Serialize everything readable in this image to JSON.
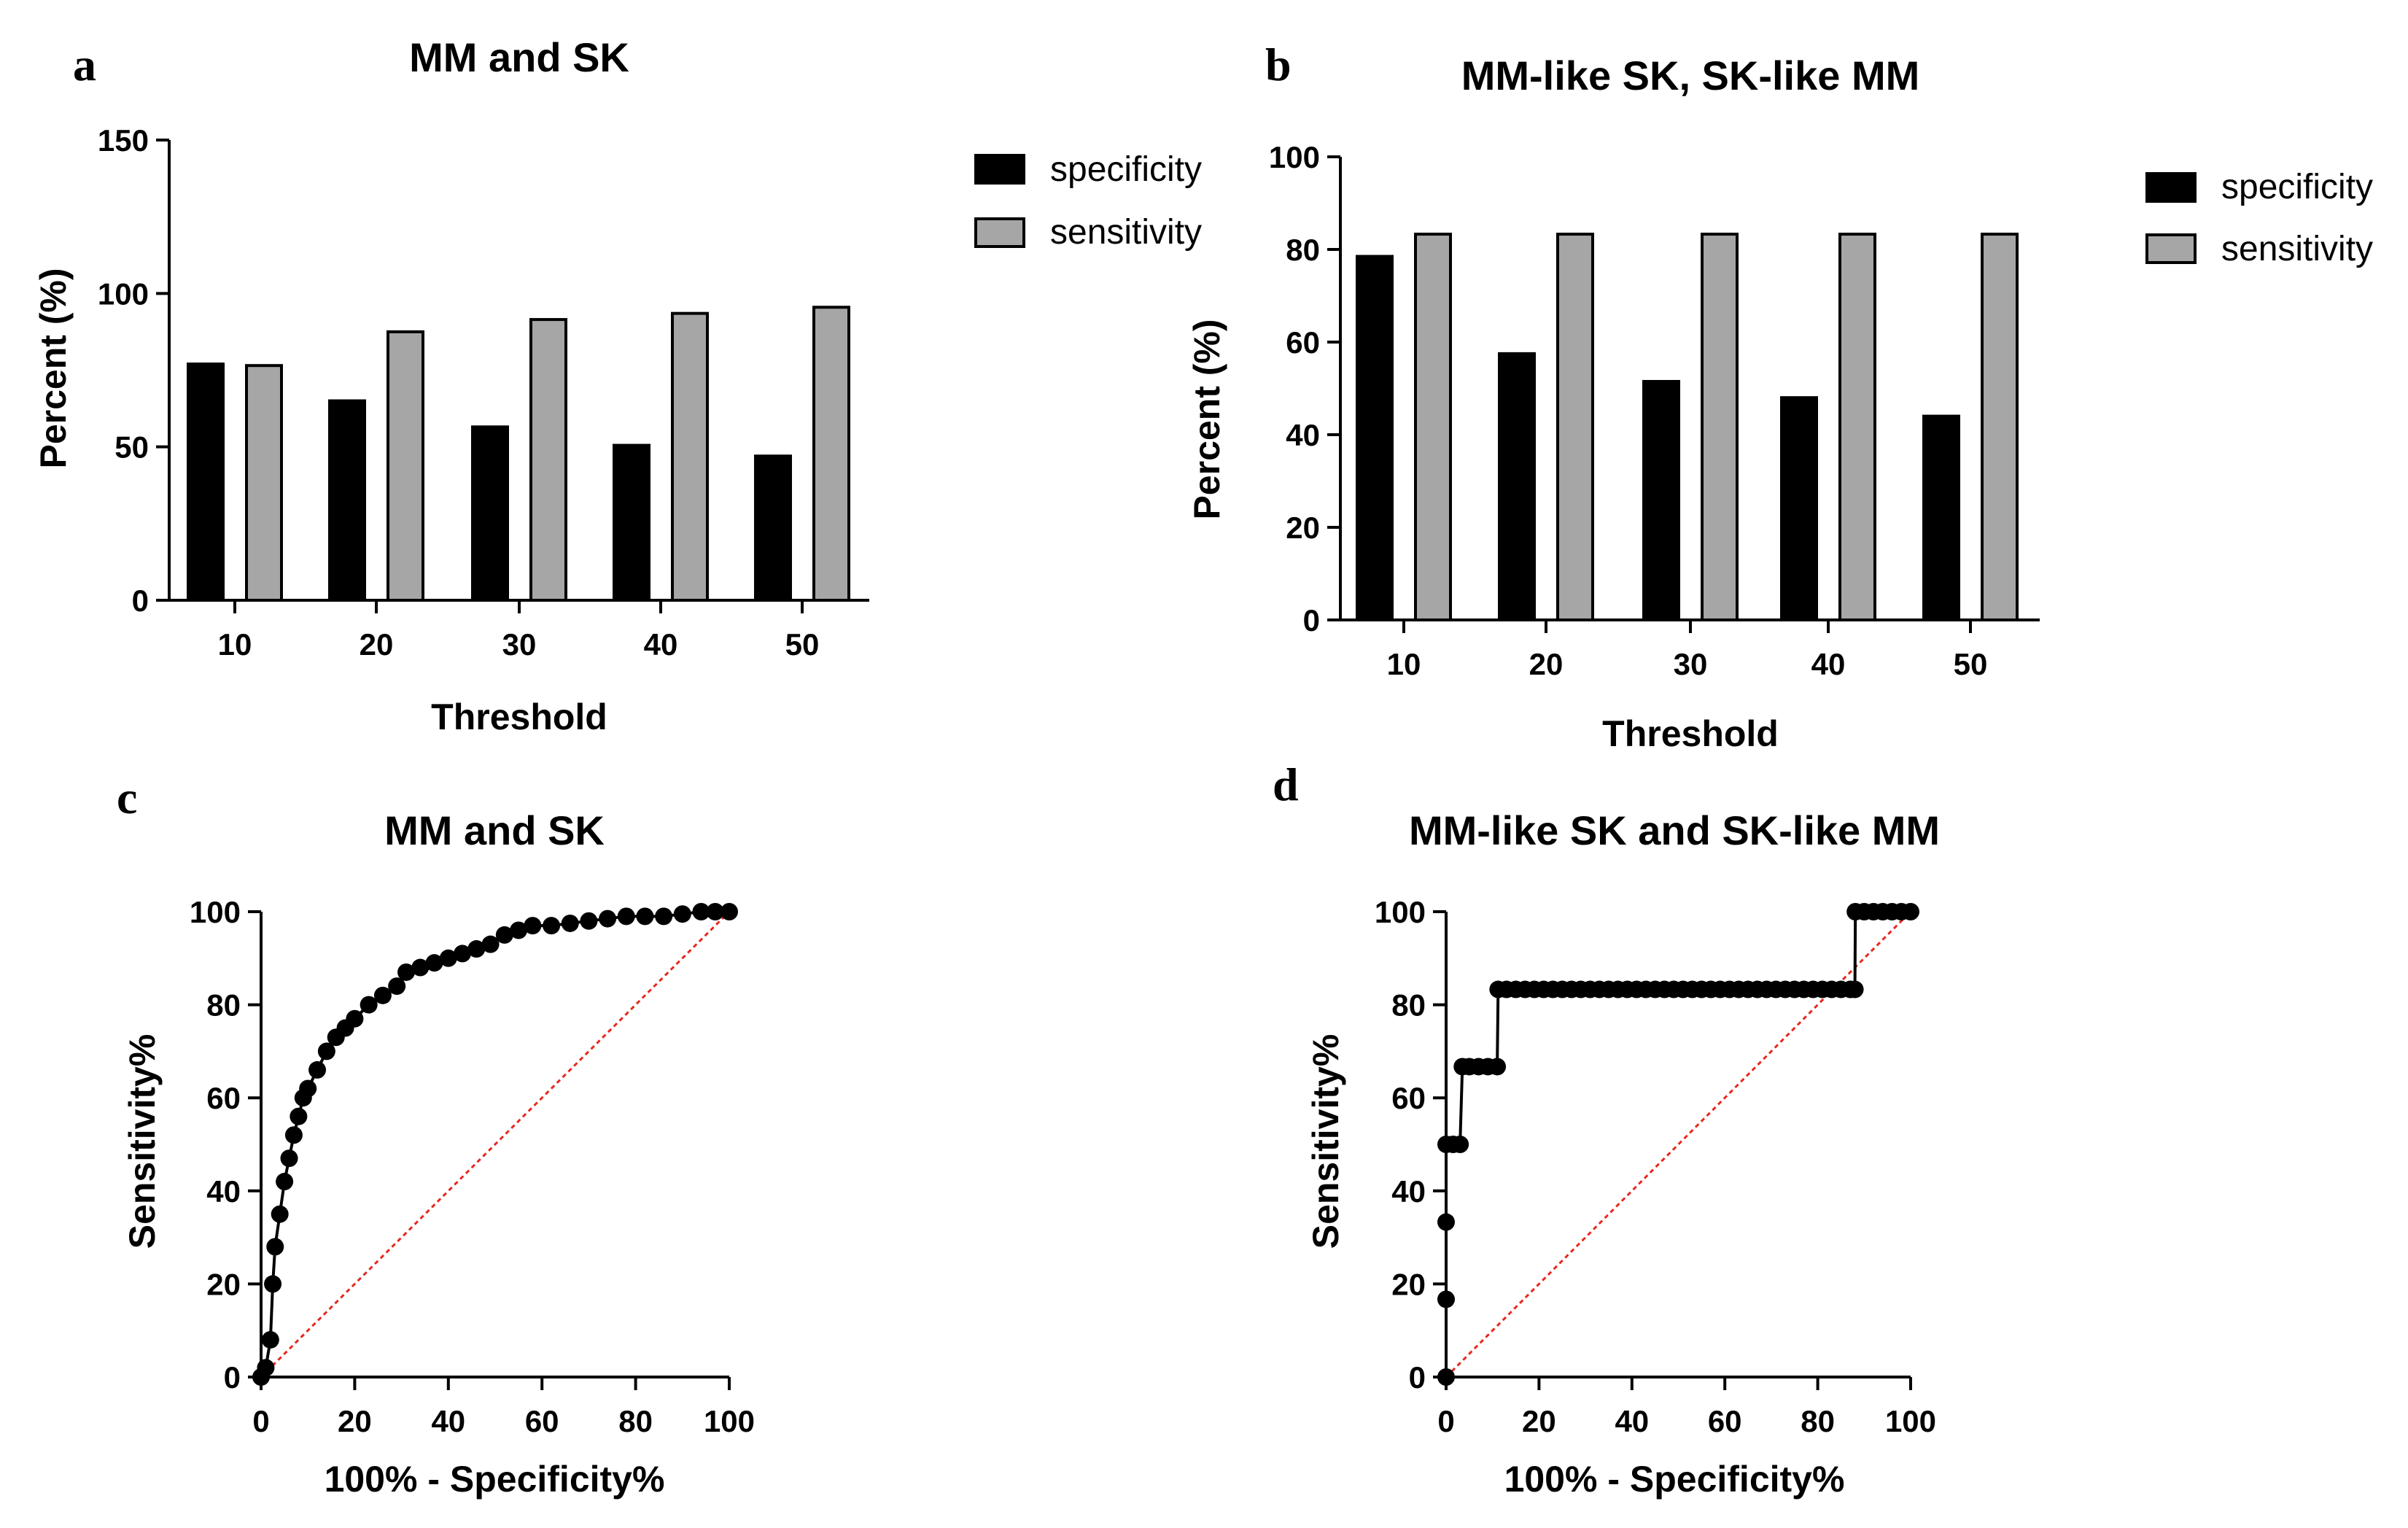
{
  "chart_data": [
    {
      "panel": "a",
      "type": "bar",
      "title": "MM and SK",
      "xlabel": "Threshold",
      "ylabel": "Percent (%)",
      "categories": [
        "10",
        "20",
        "30",
        "40",
        "50"
      ],
      "ylim": [
        0,
        150
      ],
      "yticks": [
        0,
        50,
        100,
        150
      ],
      "series": [
        {
          "name": "specificity",
          "color": "#000000",
          "values": [
            77,
            65,
            56.5,
            50.5,
            47
          ]
        },
        {
          "name": "sensitivity",
          "color": "#a6a6a6",
          "values": [
            76.5,
            87.5,
            91.5,
            93.5,
            95.5
          ]
        }
      ],
      "legend": [
        "specificity",
        "sensitivity"
      ]
    },
    {
      "panel": "b",
      "type": "bar",
      "title": "MM-like SK, SK-like MM",
      "xlabel": "Threshold",
      "ylabel": "Percent (%)",
      "categories": [
        "10",
        "20",
        "30",
        "40",
        "50"
      ],
      "ylim": [
        0,
        100
      ],
      "yticks": [
        0,
        20,
        40,
        60,
        80,
        100
      ],
      "series": [
        {
          "name": "specificity",
          "color": "#000000",
          "values": [
            78.5,
            57.5,
            51.5,
            48,
            44
          ]
        },
        {
          "name": "sensitivity",
          "color": "#a6a6a6",
          "values": [
            83.3,
            83.3,
            83.3,
            83.3,
            83.3
          ]
        }
      ],
      "legend": [
        "specificity",
        "sensitivity"
      ]
    },
    {
      "panel": "c",
      "type": "line",
      "title": "MM and SK",
      "xlabel": "100% - Specificity%",
      "ylabel": "Sensitivity%",
      "xlim": [
        0,
        100
      ],
      "ylim": [
        0,
        100
      ],
      "xticks": [
        0,
        20,
        40,
        60,
        80,
        100
      ],
      "yticks": [
        0,
        20,
        40,
        60,
        80,
        100
      ],
      "reference_line": {
        "from": [
          0,
          0
        ],
        "to": [
          100,
          100
        ],
        "color": "#e8271e"
      },
      "series": [
        {
          "name": "ROC",
          "x": [
            0,
            1,
            2,
            2.5,
            3,
            4,
            5,
            6,
            7,
            8,
            9,
            10,
            12,
            14,
            16,
            18,
            20,
            23,
            26,
            29,
            31,
            34,
            37,
            40,
            43,
            46,
            49,
            52,
            55,
            58,
            62,
            66,
            70,
            74,
            78,
            82,
            86,
            90,
            94,
            97,
            100
          ],
          "y": [
            0,
            2,
            8,
            20,
            28,
            35,
            42,
            47,
            52,
            56,
            60,
            62,
            66,
            70,
            73,
            75,
            77,
            80,
            82,
            84,
            87,
            88,
            89,
            90,
            91,
            92,
            93,
            95,
            96,
            97,
            97,
            97.5,
            98,
            98.5,
            99,
            99,
            99,
            99.5,
            100,
            100,
            100
          ]
        }
      ]
    },
    {
      "panel": "d",
      "type": "line",
      "title": "MM-like SK and SK-like MM",
      "xlabel": "100% - Specificity%",
      "ylabel": "Sensitivity%",
      "xlim": [
        0,
        100
      ],
      "ylim": [
        0,
        100
      ],
      "xticks": [
        0,
        20,
        40,
        60,
        80,
        100
      ],
      "yticks": [
        0,
        20,
        40,
        60,
        80,
        100
      ],
      "reference_line": {
        "from": [
          0,
          0
        ],
        "to": [
          100,
          100
        ],
        "color": "#e8271e"
      },
      "series": [
        {
          "name": "ROC",
          "x": [
            0,
            0,
            0,
            0,
            1.5,
            3,
            3.5,
            5,
            7,
            9,
            11,
            11.2,
            13,
            15,
            17,
            19,
            21,
            23,
            25,
            27,
            29,
            31,
            33,
            35,
            37,
            39,
            41,
            43,
            45,
            47,
            49,
            51,
            53,
            55,
            57,
            59,
            61,
            63,
            65,
            67,
            69,
            71,
            73,
            75,
            77,
            79,
            81,
            83,
            85,
            87,
            88,
            88.1,
            90,
            92,
            94,
            96,
            98,
            100
          ],
          "y": [
            0,
            16.7,
            33.3,
            50,
            50,
            50,
            66.7,
            66.7,
            66.7,
            66.7,
            66.7,
            83.3,
            83.3,
            83.3,
            83.3,
            83.3,
            83.3,
            83.3,
            83.3,
            83.3,
            83.3,
            83.3,
            83.3,
            83.3,
            83.3,
            83.3,
            83.3,
            83.3,
            83.3,
            83.3,
            83.3,
            83.3,
            83.3,
            83.3,
            83.3,
            83.3,
            83.3,
            83.3,
            83.3,
            83.3,
            83.3,
            83.3,
            83.3,
            83.3,
            83.3,
            83.3,
            83.3,
            83.3,
            83.3,
            83.3,
            83.3,
            100,
            100,
            100,
            100,
            100,
            100,
            100
          ]
        }
      ]
    }
  ]
}
